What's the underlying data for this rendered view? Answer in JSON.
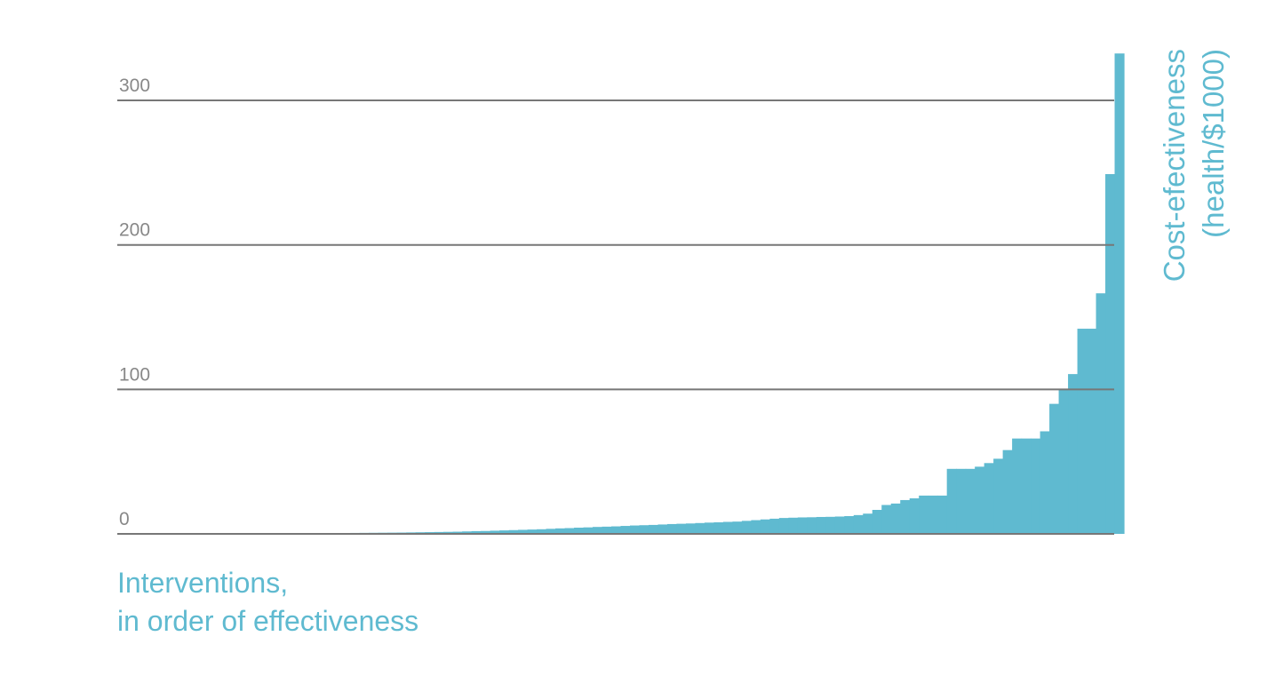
{
  "chart_data": {
    "type": "bar",
    "x_label": [
      "Interventions,",
      "in order of effectiveness"
    ],
    "y_label": [
      "Cost-efectiveness",
      "(health/$1000)"
    ],
    "categories": [
      null,
      null,
      null,
      null,
      null,
      null,
      null,
      null,
      null,
      null,
      null,
      null,
      null,
      null,
      null,
      null,
      null,
      null,
      null,
      null,
      null,
      null,
      null,
      null,
      null,
      null,
      null,
      null,
      null,
      null,
      null,
      null,
      null,
      null,
      null,
      null,
      null,
      null,
      null,
      null,
      null,
      null,
      null,
      null,
      null,
      null,
      null,
      null,
      null,
      null,
      null,
      null,
      null,
      null,
      null,
      null,
      null,
      null,
      null,
      null,
      null,
      null,
      null,
      null,
      null,
      null,
      null,
      null,
      null,
      null,
      null,
      null,
      null,
      null,
      null,
      null,
      null,
      null,
      null,
      null,
      null,
      null,
      null,
      null,
      null,
      null,
      null,
      null,
      null,
      null,
      null,
      null,
      null,
      null,
      null,
      null,
      null,
      null,
      null,
      null,
      null,
      null,
      null,
      null,
      null,
      null,
      null,
      null
    ],
    "values": [
      0.05,
      0.06,
      0.07,
      0.08,
      0.09,
      0.1,
      0.11,
      0.12,
      0.13,
      0.15,
      0.17,
      0.19,
      0.21,
      0.23,
      0.25,
      0.27,
      0.3,
      0.33,
      0.36,
      0.4,
      0.44,
      0.48,
      0.52,
      0.56,
      0.6,
      0.65,
      0.7,
      0.75,
      0.8,
      0.85,
      0.9,
      1,
      1.1,
      1.2,
      1.3,
      1.4,
      1.5,
      1.7,
      1.9,
      2,
      2.2,
      2.4,
      2.6,
      2.8,
      3,
      3.2,
      3.5,
      3.8,
      4,
      4.3,
      4.5,
      4.8,
      5,
      5.2,
      5.5,
      5.8,
      6,
      6.2,
      6.5,
      6.8,
      7,
      7.2,
      7.5,
      7.8,
      8,
      8.3,
      8.5,
      9,
      9.5,
      10,
      10.5,
      11,
      11.2,
      11.4,
      11.5,
      11.7,
      11.8,
      12,
      12.3,
      13,
      14,
      16.6,
      20,
      21,
      23.4,
      24.6,
      26.5,
      26.5,
      26.5,
      45,
      45,
      45,
      46.5,
      49,
      52,
      58,
      66,
      66,
      66,
      71,
      90,
      100,
      110.6,
      142,
      142,
      166.5,
      249,
      332.5
    ],
    "color": "#5fbad0",
    "ylim": [
      0,
      340
    ],
    "yticks": [
      0,
      100,
      200,
      300
    ],
    "grid": true
  }
}
